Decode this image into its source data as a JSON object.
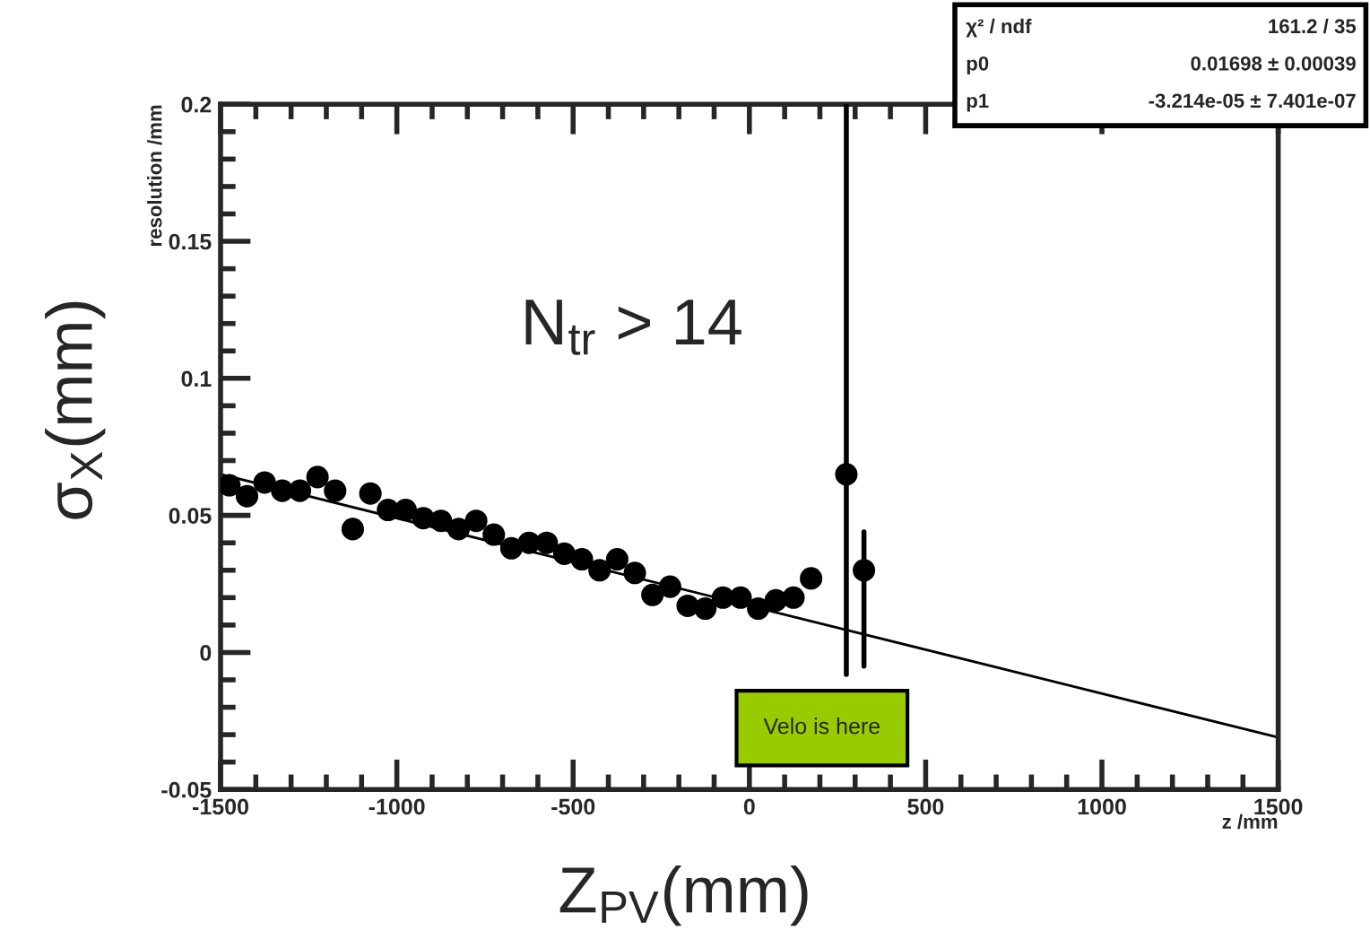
{
  "chart_data": {
    "type": "scatter",
    "xlabel": "z /mm",
    "ylabel": "resolution /mm",
    "xlim": [
      -1500,
      1500
    ],
    "ylim": [
      -0.05,
      0.2
    ],
    "xticks": [
      -1500,
      -1000,
      -500,
      0,
      500,
      1000,
      1500
    ],
    "yticks": [
      -0.05,
      0,
      0.05,
      0.1,
      0.15,
      0.2
    ],
    "grid": false,
    "legend": false,
    "series": [
      {
        "color": "#000000",
        "marker": "circle",
        "x": [
          -1475,
          -1425,
          -1375,
          -1325,
          -1275,
          -1225,
          -1175,
          -1125,
          -1075,
          -1025,
          -975,
          -925,
          -875,
          -825,
          -775,
          -725,
          -675,
          -625,
          -575,
          -525,
          -475,
          -425,
          -375,
          -325,
          -275,
          -225,
          -175,
          -125,
          -75,
          -25,
          25,
          75,
          125,
          175,
          275,
          325
        ],
        "values": [
          0.061,
          0.057,
          0.062,
          0.059,
          0.059,
          0.064,
          0.059,
          0.045,
          0.058,
          0.052,
          0.052,
          0.049,
          0.048,
          0.045,
          0.048,
          0.043,
          0.038,
          0.04,
          0.04,
          0.036,
          0.034,
          0.03,
          0.034,
          0.029,
          0.021,
          0.024,
          0.017,
          0.016,
          0.02,
          0.02,
          0.016,
          0.019,
          0.02,
          0.027,
          0.065,
          0.03
        ],
        "errors": [
          null,
          null,
          null,
          null,
          null,
          null,
          null,
          null,
          null,
          null,
          null,
          null,
          null,
          null,
          null,
          null,
          null,
          null,
          null,
          null,
          null,
          null,
          null,
          null,
          null,
          null,
          null,
          null,
          null,
          null,
          null,
          null,
          null,
          null,
          [
            -0.008,
            0.2
          ],
          [
            -0.005,
            0.044
          ]
        ]
      },
      {
        "type": "line",
        "color": "#000000",
        "marker": "none",
        "line_style": "solid",
        "x": [
          -1500,
          1500
        ],
        "values": [
          0.065,
          -0.031
        ]
      }
    ],
    "annotations": [
      "χ² / ndf",
      "161.2 / 35",
      "p0",
      "0.01698 ± 0.00039",
      "p1",
      "-3.214e-05 ± 7.401e-07",
      "N$_{tr}$ > 14",
      "Velo is here",
      "σ$_{X}$(mm)",
      "Z$_{PV}$(mm)"
    ]
  }
}
